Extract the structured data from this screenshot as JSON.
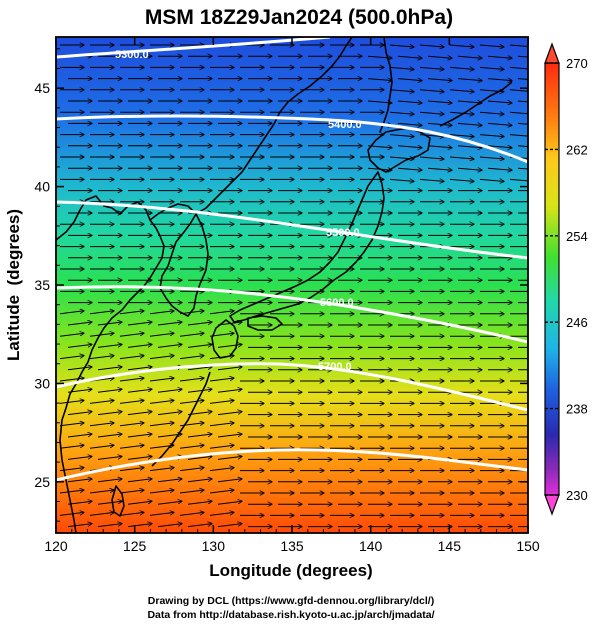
{
  "title": "MSM 18Z29Jan2024 (500.0hPa)",
  "xaxis": {
    "label": "Longitude (degrees)",
    "range": [
      120,
      150
    ],
    "ticks": [
      "120",
      "125",
      "130",
      "135",
      "140",
      "145",
      "150"
    ]
  },
  "yaxis": {
    "label": "Latitude  (degrees)",
    "range": [
      22.4,
      47.6
    ],
    "ticks": [
      "25",
      "30",
      "35",
      "40",
      "45"
    ]
  },
  "colorbar": {
    "range": [
      230,
      270
    ],
    "labels": [
      "270",
      "262",
      "254",
      "246",
      "238",
      "230"
    ]
  },
  "contour_labels": [
    "5300.0",
    "5400.0",
    "5500.0",
    "5600.0",
    "5700.0"
  ],
  "credits": {
    "line1": "Drawing by DCL (https://www.gfd-dennou.org/library/dcl/)",
    "line2": "Data from http://database.rish.kyoto-u.ac.jp/arch/jmadata/"
  },
  "colors": {
    "cold": "#1f3fd8",
    "mid": "#2fe04a",
    "warm": "#ff3a00",
    "contour": "#ffffff",
    "coast": "#000000"
  }
}
